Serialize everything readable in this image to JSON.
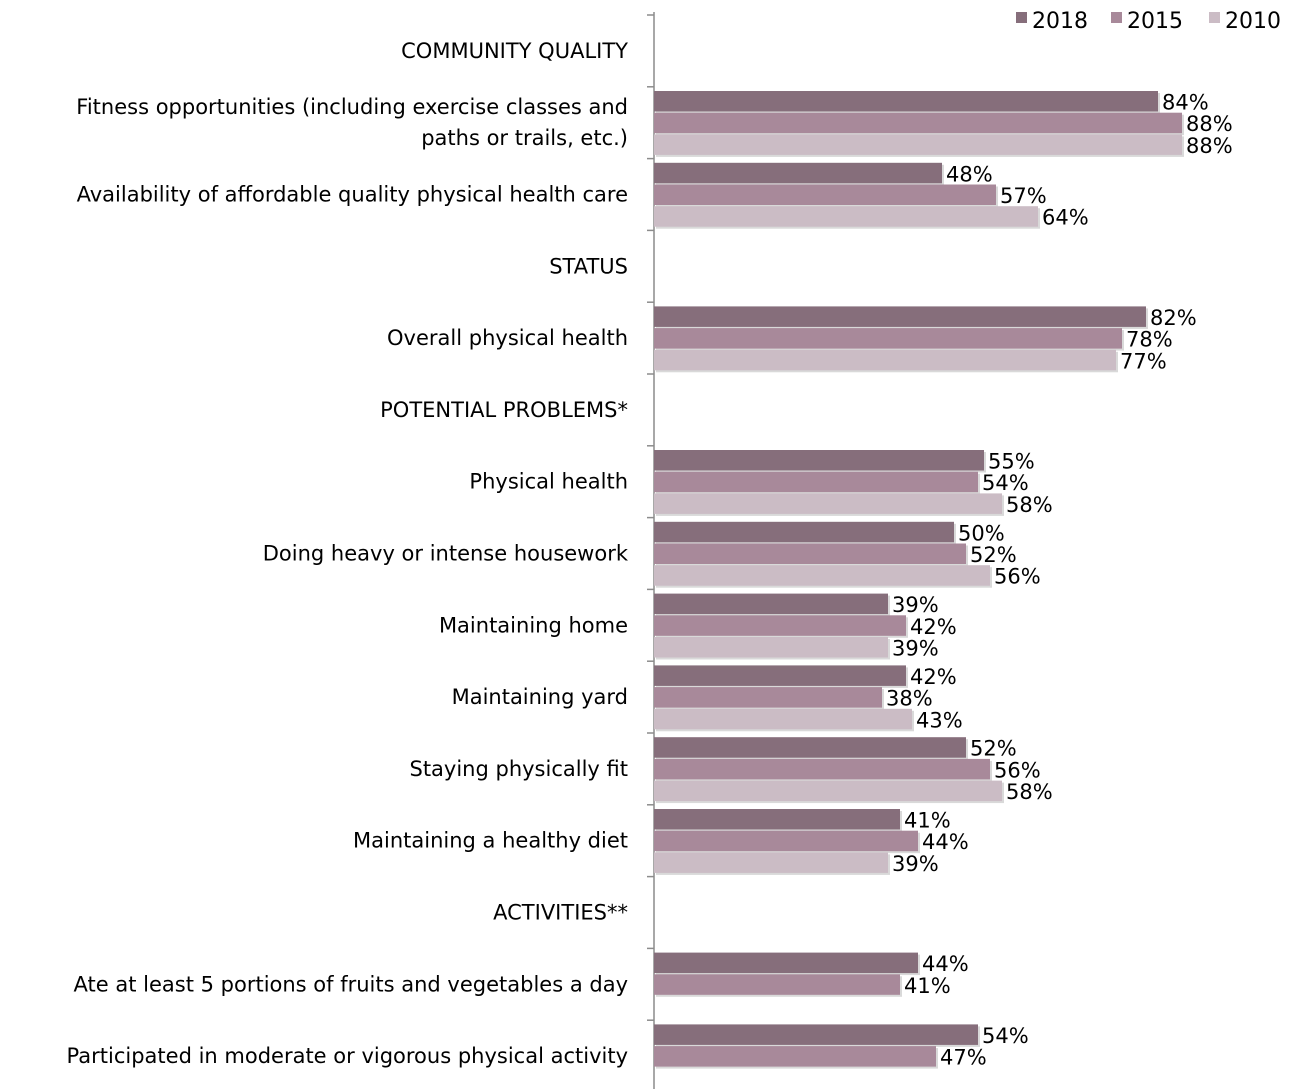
{
  "chart_data": {
    "type": "bar",
    "orientation": "horizontal",
    "grid": false,
    "legend_position": "top-right",
    "xlim": [
      0,
      100
    ],
    "series_order": [
      "2018",
      "2015",
      "2010"
    ],
    "series": [
      {
        "name": "2018",
        "color": "#866e7b"
      },
      {
        "name": "2015",
        "color": "#a8899a"
      },
      {
        "name": "2010",
        "color": "#cbbcc5"
      }
    ],
    "rows": [
      {
        "label": "COMMUNITY QUALITY",
        "header": true,
        "values": []
      },
      {
        "label": "Fitness opportunities (including exercise classes and paths or trails, etc.)",
        "header": false,
        "values": [
          84,
          88,
          88
        ],
        "display": [
          "84%",
          "88%",
          "88%"
        ]
      },
      {
        "label": "Availability of affordable quality physical health care",
        "header": false,
        "values": [
          48,
          57,
          64
        ],
        "display": [
          "48%",
          "57%",
          "64%"
        ]
      },
      {
        "label": "STATUS",
        "header": true,
        "values": []
      },
      {
        "label": "Overall physical health",
        "header": false,
        "values": [
          82,
          78,
          77
        ],
        "display": [
          "82%",
          "78%",
          "77%"
        ]
      },
      {
        "label": "POTENTIAL PROBLEMS*",
        "header": true,
        "values": []
      },
      {
        "label": "Physical health",
        "header": false,
        "values": [
          55,
          54,
          58
        ],
        "display": [
          "55%",
          "54%",
          "58%"
        ]
      },
      {
        "label": "Doing heavy or intense housework",
        "header": false,
        "values": [
          50,
          52,
          56
        ],
        "display": [
          "50%",
          "52%",
          "56%"
        ]
      },
      {
        "label": "Maintaining home",
        "header": false,
        "values": [
          39,
          42,
          39
        ],
        "display": [
          "39%",
          "42%",
          "39%"
        ]
      },
      {
        "label": "Maintaining yard",
        "header": false,
        "values": [
          42,
          38,
          43
        ],
        "display": [
          "42%",
          "38%",
          "43%"
        ]
      },
      {
        "label": "Staying physically fit",
        "header": false,
        "values": [
          52,
          56,
          58
        ],
        "display": [
          "52%",
          "56%",
          "58%"
        ]
      },
      {
        "label": "Maintaining a healthy diet",
        "header": false,
        "values": [
          41,
          44,
          39
        ],
        "display": [
          "41%",
          "44%",
          "39%"
        ]
      },
      {
        "label": "ACTIVITIES**",
        "header": true,
        "values": []
      },
      {
        "label": "Ate at least 5 portions of fruits and vegetables a day",
        "header": false,
        "values": [
          44,
          41
        ],
        "display": [
          "44%",
          "41%"
        ]
      },
      {
        "label": "Participated in moderate or vigorous physical activity",
        "header": false,
        "values": [
          54,
          47
        ],
        "display": [
          "54%",
          "47%"
        ]
      }
    ]
  }
}
